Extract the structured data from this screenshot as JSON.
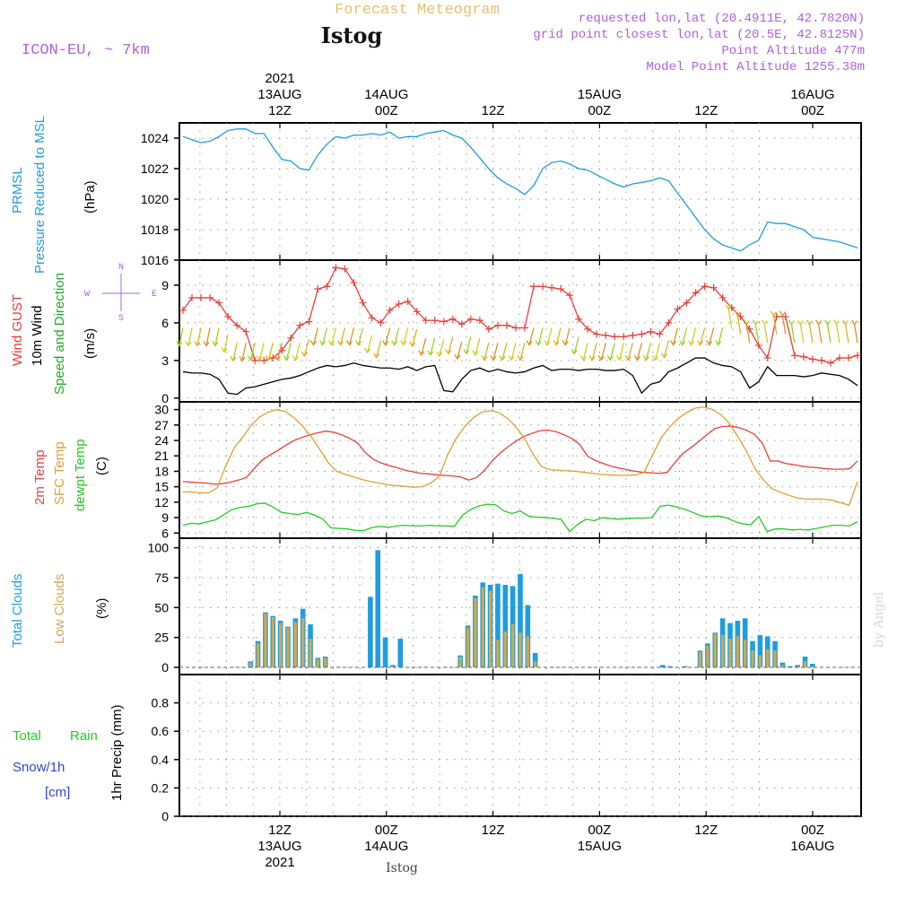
{
  "header": {
    "product_title": "Forecast Meteogram",
    "location": "Istog",
    "model": "ICON-EU, ~ 7km",
    "requested": "requested lon,lat (20.4911E, 42.7820N)",
    "grid_point": "grid point closest lon,lat (20.5E, 42.8125N)",
    "point_altitude": "Point Altitude 477m",
    "model_altitude": "Model Point Altitude 1255.38m",
    "credit": "by Angel",
    "footer_location": "Istog"
  },
  "colors": {
    "pressure": "#1e9de0",
    "gust": "#e8403a",
    "wind": "#000000",
    "t2m": "#e8403a",
    "tsfc": "#e0a030",
    "dewpt": "#22cc22",
    "total_clouds": "#1e9de0",
    "low_clouds": "#d4a84a",
    "rain": "#22cc22",
    "snow": "#3344dd",
    "header_purple": "#b060e0",
    "title_orange": "#e8c070"
  },
  "time_axis": {
    "hours_total": 64,
    "labels": [
      {
        "hour": 12,
        "top": [
          "2021",
          "13AUG",
          "12Z"
        ],
        "bottom": [
          "12Z",
          "13AUG",
          "2021"
        ]
      },
      {
        "hour": 24,
        "top": [
          "14AUG",
          "00Z"
        ],
        "bottom": [
          "00Z",
          "14AUG"
        ]
      },
      {
        "hour": 36,
        "top": [
          "12Z"
        ],
        "bottom": [
          "12Z"
        ]
      },
      {
        "hour": 48,
        "top": [
          "15AUG",
          "00Z"
        ],
        "bottom": [
          "00Z",
          "15AUG"
        ]
      },
      {
        "hour": 60,
        "top": [
          "12Z"
        ],
        "bottom": [
          "12Z"
        ]
      },
      {
        "hour": 72,
        "top": [
          "16AUG",
          "00Z"
        ],
        "bottom": [
          "00Z",
          "16AUG"
        ]
      }
    ]
  },
  "chart_data": [
    {
      "type": "line",
      "title": "PRMSL Pressure Reduced to MSL",
      "ylabel": "(hPa)",
      "ylim": [
        1016,
        1025
      ],
      "yticks": [
        1016,
        1018,
        1020,
        1022,
        1024
      ],
      "x_start_hour": 0,
      "series": [
        {
          "name": "PRMSL",
          "color": "pressure",
          "values": [
            1024.1,
            1023.9,
            1023.7,
            1023.8,
            1024.1,
            1024.5,
            1024.6,
            1024.6,
            1024.3,
            1024.3,
            1023.4,
            1022.6,
            1022.5,
            1022.0,
            1021.9,
            1022.9,
            1023.6,
            1024.1,
            1024.0,
            1024.2,
            1024.2,
            1024.3,
            1024.2,
            1024.4,
            1024.0,
            1024.1,
            1024.1,
            1024.3,
            1024.4,
            1024.5,
            1024.2,
            1024.0,
            1023.4,
            1022.7,
            1022.0,
            1021.4,
            1021.0,
            1020.7,
            1020.3,
            1020.9,
            1022.0,
            1022.4,
            1022.5,
            1022.3,
            1022.0,
            1021.9,
            1021.6,
            1021.3,
            1021.0,
            1020.8,
            1021.0,
            1021.1,
            1021.2,
            1021.4,
            1021.2,
            1020.4,
            1019.6,
            1018.8,
            1018.0,
            1017.4,
            1017.0,
            1016.8,
            1016.6,
            1017.0,
            1017.3,
            1018.5,
            1018.4,
            1018.4,
            1018.2,
            1018.0,
            1017.5,
            1017.4,
            1017.3,
            1017.2,
            1017.0,
            1016.8
          ]
        }
      ]
    },
    {
      "type": "line",
      "title": "Wind GUST / 10m Wind / Speed and Direction",
      "ylabel": "(m/s)",
      "ylim": [
        -0.3,
        11
      ],
      "yticks": [
        0,
        3,
        6,
        9
      ],
      "x_start_hour": 0,
      "series": [
        {
          "name": "Wind GUST",
          "color": "gust",
          "marker": "plus",
          "values": [
            7.0,
            8.0,
            8.0,
            8.0,
            7.6,
            6.5,
            5.8,
            5.3,
            3.0,
            3.0,
            3.2,
            3.8,
            4.8,
            5.8,
            6.1,
            8.7,
            8.9,
            10.4,
            10.3,
            9.2,
            7.6,
            6.4,
            6.0,
            7.0,
            7.5,
            7.7,
            6.9,
            6.2,
            6.2,
            6.1,
            6.3,
            5.9,
            6.3,
            6.2,
            5.5,
            5.8,
            5.8,
            5.6,
            5.6,
            8.9,
            8.9,
            8.8,
            8.7,
            8.2,
            6.3,
            5.5,
            5.1,
            5.0,
            4.9,
            4.9,
            5.0,
            5.1,
            5.3,
            5.1,
            6.0,
            7.1,
            7.6,
            8.4,
            8.9,
            8.8,
            8.0,
            7.2,
            6.5,
            5.5,
            4.2,
            3.2,
            6.5,
            6.5,
            3.4,
            3.3,
            3.1,
            3.0,
            2.8,
            3.2,
            3.2,
            3.4
          ]
        },
        {
          "name": "10m Wind",
          "color": "wind",
          "values": [
            2.1,
            2.0,
            2.0,
            1.9,
            1.5,
            0.4,
            0.3,
            0.8,
            0.9,
            1.1,
            1.3,
            1.5,
            1.6,
            1.8,
            2.1,
            2.4,
            2.6,
            2.5,
            2.6,
            2.8,
            2.6,
            2.5,
            2.4,
            2.4,
            2.3,
            2.5,
            2.2,
            2.5,
            2.6,
            0.6,
            0.5,
            1.5,
            2.2,
            2.4,
            2.1,
            2.3,
            2.1,
            2.0,
            2.1,
            2.4,
            2.6,
            2.2,
            2.3,
            2.3,
            2.2,
            2.3,
            2.3,
            2.2,
            2.2,
            2.3,
            1.8,
            0.4,
            1.1,
            1.3,
            2.1,
            2.4,
            2.8,
            3.2,
            3.2,
            2.8,
            2.6,
            2.5,
            2.1,
            0.8,
            1.3,
            2.5,
            1.8,
            1.8,
            1.8,
            1.7,
            1.8,
            2.0,
            1.9,
            1.8,
            1.5,
            1.0
          ]
        }
      ]
    },
    {
      "type": "line",
      "title": "2m Temp / SFC Temp / dewpt Temp",
      "ylabel": "(C)",
      "ylim": [
        5,
        31.5
      ],
      "yticks": [
        6,
        9,
        12,
        15,
        18,
        21,
        24,
        27,
        30
      ],
      "x_start_hour": 0,
      "series": [
        {
          "name": "2m Temp",
          "color": "t2m",
          "values": [
            16.0,
            15.9,
            15.8,
            15.7,
            15.5,
            15.6,
            15.9,
            16.3,
            16.8,
            18.6,
            20.2,
            21.2,
            22.1,
            23.1,
            24.0,
            24.6,
            25.1,
            25.5,
            25.8,
            25.6,
            25.1,
            24.4,
            23.5,
            21.6,
            20.3,
            19.6,
            19.1,
            18.7,
            18.2,
            17.9,
            17.6,
            17.5,
            17.3,
            17.2,
            17.1,
            16.9,
            16.3,
            16.8,
            18.2,
            20.1,
            21.6,
            22.8,
            23.9,
            24.8,
            25.4,
            25.9,
            26.0,
            25.7,
            25.1,
            24.4,
            23.2,
            20.9,
            20.1,
            19.5,
            19.0,
            18.6,
            18.3,
            18.0,
            17.8,
            17.7,
            17.6,
            17.8,
            19.7,
            21.5,
            22.6,
            23.8,
            25.1,
            26.3,
            26.7,
            26.8,
            26.5,
            26.0,
            25.2,
            23.5,
            20.0,
            20.0,
            19.5,
            19.3,
            19.0,
            18.8,
            18.7,
            18.5,
            18.4,
            18.4,
            18.5,
            20.0
          ]
        },
        {
          "name": "SFC Temp",
          "color": "tsfc",
          "values": [
            14.0,
            14.0,
            13.8,
            13.8,
            14.8,
            19.0,
            22.6,
            24.6,
            27.0,
            28.6,
            29.5,
            30.0,
            29.6,
            28.4,
            26.8,
            24.8,
            22.3,
            19.7,
            18.0,
            17.4,
            16.9,
            16.4,
            16.0,
            15.7,
            15.4,
            15.2,
            15.1,
            14.9,
            15.0,
            15.7,
            17.0,
            21.2,
            24.4,
            26.7,
            28.4,
            29.5,
            29.8,
            29.4,
            28.3,
            26.6,
            24.4,
            21.3,
            18.9,
            18.3,
            18.2,
            18.1,
            18.0,
            17.8,
            17.6,
            17.4,
            17.3,
            17.2,
            17.2,
            17.3,
            17.8,
            21.2,
            24.5,
            26.6,
            28.3,
            29.4,
            30.3,
            30.5,
            30.0,
            29.0,
            27.3,
            24.7,
            21.9,
            18.5,
            16.3,
            14.6,
            13.9,
            13.3,
            12.8,
            12.6,
            12.6,
            12.6,
            12.4,
            11.9,
            11.4,
            16.0
          ]
        },
        {
          "name": "dewpt Temp",
          "color": "dewpt",
          "values": [
            7.5,
            7.9,
            7.8,
            8.2,
            8.6,
            9.6,
            10.6,
            11.0,
            11.2,
            11.7,
            11.8,
            11.0,
            10.0,
            9.8,
            9.6,
            10.0,
            9.5,
            8.7,
            7.0,
            6.9,
            6.8,
            6.5,
            6.5,
            7.1,
            7.3,
            7.1,
            7.4,
            7.5,
            7.4,
            7.4,
            7.5,
            7.4,
            7.4,
            7.3,
            9.5,
            10.6,
            11.3,
            11.6,
            11.5,
            10.3,
            9.8,
            10.3,
            9.3,
            9.1,
            9.0,
            8.9,
            8.6,
            6.3,
            7.7,
            8.7,
            8.4,
            9.0,
            8.8,
            8.7,
            8.8,
            8.9,
            8.9,
            9.0,
            11.2,
            11.4,
            11.1,
            10.6,
            10.0,
            9.3,
            9.2,
            9.3,
            9.0,
            8.3,
            7.8,
            7.6,
            9.2,
            6.3,
            6.8,
            6.8,
            6.6,
            6.7,
            6.6,
            6.9,
            7.2,
            7.5,
            7.5,
            7.4,
            8.2
          ]
        }
      ]
    },
    {
      "type": "bar",
      "title": "Total Clouds / Low Clouds",
      "ylabel": "(%)",
      "ylim": [
        -6,
        108
      ],
      "yticks": [
        0,
        25,
        50,
        75,
        100
      ],
      "x_start_hour": 0,
      "series": [
        {
          "name": "Total Clouds",
          "color": "total_clouds",
          "values": [
            0,
            0,
            0,
            0,
            0,
            0,
            0,
            0,
            0,
            5,
            22,
            46,
            43,
            39,
            34,
            41,
            49,
            36,
            8,
            9,
            0,
            0,
            0,
            0,
            0,
            59,
            98,
            25,
            2,
            24,
            0,
            0,
            0,
            0,
            0,
            0,
            0,
            10,
            35,
            60,
            71,
            69,
            70,
            69,
            68,
            78,
            52,
            12,
            0,
            0,
            0,
            0,
            0,
            0,
            0,
            0,
            0,
            0,
            0,
            0,
            0,
            0,
            0,
            0,
            2,
            1,
            0,
            1,
            0,
            14,
            20,
            29,
            41,
            37,
            39,
            41,
            22,
            27,
            26,
            22,
            4,
            1,
            2,
            9,
            3,
            0,
            0,
            0,
            0,
            0,
            0
          ]
        },
        {
          "name": "Low Clouds",
          "color": "low_clouds",
          "values": [
            0,
            0,
            0,
            0,
            0,
            0,
            0,
            0,
            0,
            4,
            20,
            45,
            42,
            37,
            33,
            38,
            41,
            24,
            7,
            8,
            0,
            0,
            0,
            0,
            0,
            0,
            0,
            0,
            1,
            0,
            0,
            0,
            0,
            0,
            0,
            0,
            0,
            9,
            33,
            58,
            67,
            64,
            23,
            30,
            36,
            29,
            26,
            5,
            0,
            0,
            0,
            0,
            0,
            0,
            0,
            0,
            0,
            0,
            0,
            0,
            0,
            0,
            0,
            0,
            0,
            0,
            0,
            0,
            0,
            13,
            18,
            28,
            27,
            24,
            26,
            23,
            14,
            10,
            15,
            14,
            2,
            0,
            1,
            5,
            1,
            0,
            0,
            0,
            0,
            0,
            0
          ]
        }
      ]
    },
    {
      "type": "bar",
      "title": "Total Rain / Snow/1h",
      "ylabel": "1hr Precip (mm)",
      "ylim": [
        0,
        1.0
      ],
      "yticks": [
        0,
        0.2,
        0.4,
        0.6,
        0.8
      ],
      "x_start_hour": 0,
      "series": [
        {
          "name": "Total Rain",
          "color": "rain",
          "values": []
        },
        {
          "name": "Snow/1h",
          "color": "snow",
          "values": []
        }
      ]
    }
  ],
  "panel_labels": {
    "pressure": [
      "PRMSL",
      "Pressure Reduced to MSL"
    ],
    "pressure_unit": "(hPa)",
    "wind": [
      "Wind GUST",
      "10m Wind",
      "Speed and Direction"
    ],
    "wind_unit": "(m/s)",
    "compass": {
      "n": "N",
      "s": "S",
      "w": "W",
      "e": "E"
    },
    "temp": [
      "2m Temp",
      "SFC Temp",
      "dewpt Temp"
    ],
    "temp_unit": "(C)",
    "clouds": [
      "Total Clouds",
      "Low Clouds"
    ],
    "clouds_unit": "(%)",
    "precip_left": [
      "Total",
      "Rain",
      "Snow/1h",
      "[cm]"
    ],
    "precip_unit": "1hr Precip (mm)"
  }
}
